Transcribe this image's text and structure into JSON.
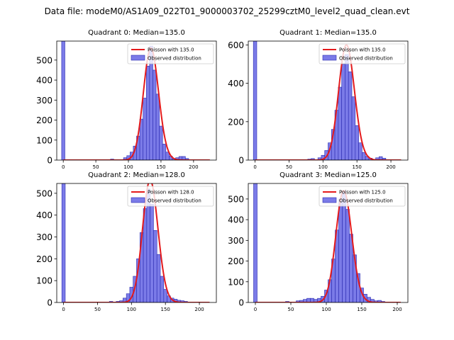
{
  "figure_title": "Data file: modeM0/AS1A09_022T01_9000003702_25299cztM0_level2_quad_clean.evt",
  "colors": {
    "hist_fill": "#7b7be8",
    "hist_edge": "#2b2bb0",
    "poisson_line": "#e41a1c",
    "axis": "#000000"
  },
  "chart_data": [
    {
      "type": "bar",
      "title": "Quadrant 0: Median=135.0",
      "legend": {
        "line_label": "Poisson with 135.0",
        "bar_label": "Observed distribution",
        "placement": "upper-right"
      },
      "xlim": [
        -10,
        235
      ],
      "ylim": [
        0,
        595
      ],
      "xticks": [
        0,
        50,
        100,
        150,
        200
      ],
      "yticks": [
        0,
        100,
        200,
        300,
        400,
        500
      ],
      "bin_width": 5,
      "spike": {
        "x": 0,
        "height": 595
      },
      "bins": [
        [
          75,
          5
        ],
        [
          95,
          12
        ],
        [
          100,
          22
        ],
        [
          105,
          40
        ],
        [
          110,
          70
        ],
        [
          115,
          120
        ],
        [
          120,
          205
        ],
        [
          125,
          310
        ],
        [
          130,
          470
        ],
        [
          135,
          570
        ],
        [
          140,
          450
        ],
        [
          145,
          330
        ],
        [
          150,
          170
        ],
        [
          155,
          80
        ],
        [
          160,
          40
        ],
        [
          165,
          20
        ],
        [
          170,
          8
        ],
        [
          175,
          12
        ],
        [
          180,
          18
        ],
        [
          185,
          18
        ],
        [
          190,
          8
        ]
      ],
      "poisson": {
        "mean": 135.0,
        "peak": 560,
        "x_range": [
          0,
          225
        ]
      }
    },
    {
      "type": "bar",
      "title": "Quadrant 1: Median=135.0",
      "legend": {
        "line_label": "Poisson with 135.0",
        "bar_label": "Observed distribution",
        "placement": "upper-right"
      },
      "xlim": [
        -10,
        225
      ],
      "ylim": [
        0,
        620
      ],
      "xticks": [
        0,
        50,
        100,
        150,
        200
      ],
      "yticks": [
        0,
        200,
        400,
        600
      ],
      "bin_width": 5,
      "spike": {
        "x": 0,
        "height": 620
      },
      "bins": [
        [
          80,
          5
        ],
        [
          85,
          8
        ],
        [
          95,
          12
        ],
        [
          100,
          25
        ],
        [
          105,
          50
        ],
        [
          110,
          90
        ],
        [
          115,
          160
        ],
        [
          120,
          260
        ],
        [
          125,
          380
        ],
        [
          130,
          500
        ],
        [
          135,
          550
        ],
        [
          140,
          460
        ],
        [
          145,
          330
        ],
        [
          150,
          180
        ],
        [
          155,
          90
        ],
        [
          160,
          40
        ],
        [
          165,
          20
        ],
        [
          170,
          10
        ],
        [
          180,
          12
        ],
        [
          185,
          18
        ],
        [
          190,
          10
        ]
      ],
      "poisson": {
        "mean": 135.0,
        "peak": 600,
        "x_range": [
          0,
          215
        ]
      }
    },
    {
      "type": "bar",
      "title": "Quadrant 2: Median=128.0",
      "legend": {
        "line_label": "Poisson with 128.0",
        "bar_label": "Observed distribution",
        "placement": "upper-right"
      },
      "xlim": [
        -10,
        225
      ],
      "ylim": [
        0,
        545
      ],
      "xticks": [
        0,
        50,
        100,
        150,
        200
      ],
      "yticks": [
        0,
        100,
        200,
        300,
        400,
        500
      ],
      "bin_width": 5,
      "spike": {
        "x": 0,
        "height": 545
      },
      "bins": [
        [
          70,
          5
        ],
        [
          80,
          5
        ],
        [
          85,
          8
        ],
        [
          90,
          20
        ],
        [
          95,
          40
        ],
        [
          100,
          70
        ],
        [
          105,
          120
        ],
        [
          110,
          200
        ],
        [
          115,
          320
        ],
        [
          120,
          430
        ],
        [
          125,
          520
        ],
        [
          130,
          450
        ],
        [
          135,
          330
        ],
        [
          140,
          220
        ],
        [
          145,
          120
        ],
        [
          150,
          60
        ],
        [
          155,
          30
        ],
        [
          160,
          20
        ],
        [
          165,
          15
        ],
        [
          170,
          10
        ],
        [
          175,
          8
        ],
        [
          180,
          5
        ]
      ],
      "poisson": {
        "mean": 128.0,
        "peak": 560,
        "x_range": [
          0,
          215
        ]
      }
    },
    {
      "type": "bar",
      "title": "Quadrant 3: Median=125.0",
      "legend": {
        "line_label": "Poisson with 125.0",
        "bar_label": "Observed distribution",
        "placement": "upper-right"
      },
      "xlim": [
        -10,
        215
      ],
      "ylim": [
        0,
        575
      ],
      "xticks": [
        0,
        50,
        100,
        150,
        200
      ],
      "yticks": [
        0,
        100,
        200,
        300,
        400,
        500
      ],
      "bin_width": 5,
      "spike": {
        "x": 0,
        "height": 575
      },
      "bins": [
        [
          45,
          5
        ],
        [
          60,
          8
        ],
        [
          65,
          10
        ],
        [
          70,
          15
        ],
        [
          75,
          20
        ],
        [
          80,
          20
        ],
        [
          85,
          15
        ],
        [
          90,
          20
        ],
        [
          95,
          30
        ],
        [
          100,
          60
        ],
        [
          105,
          110
        ],
        [
          110,
          210
        ],
        [
          115,
          350
        ],
        [
          120,
          500
        ],
        [
          125,
          540
        ],
        [
          130,
          450
        ],
        [
          135,
          330
        ],
        [
          140,
          230
        ],
        [
          145,
          140
        ],
        [
          150,
          70
        ],
        [
          155,
          40
        ],
        [
          160,
          25
        ],
        [
          165,
          15
        ],
        [
          170,
          8
        ],
        [
          175,
          10
        ],
        [
          180,
          5
        ]
      ],
      "poisson": {
        "mean": 125.0,
        "peak": 540,
        "x_range": [
          0,
          205
        ]
      }
    }
  ]
}
